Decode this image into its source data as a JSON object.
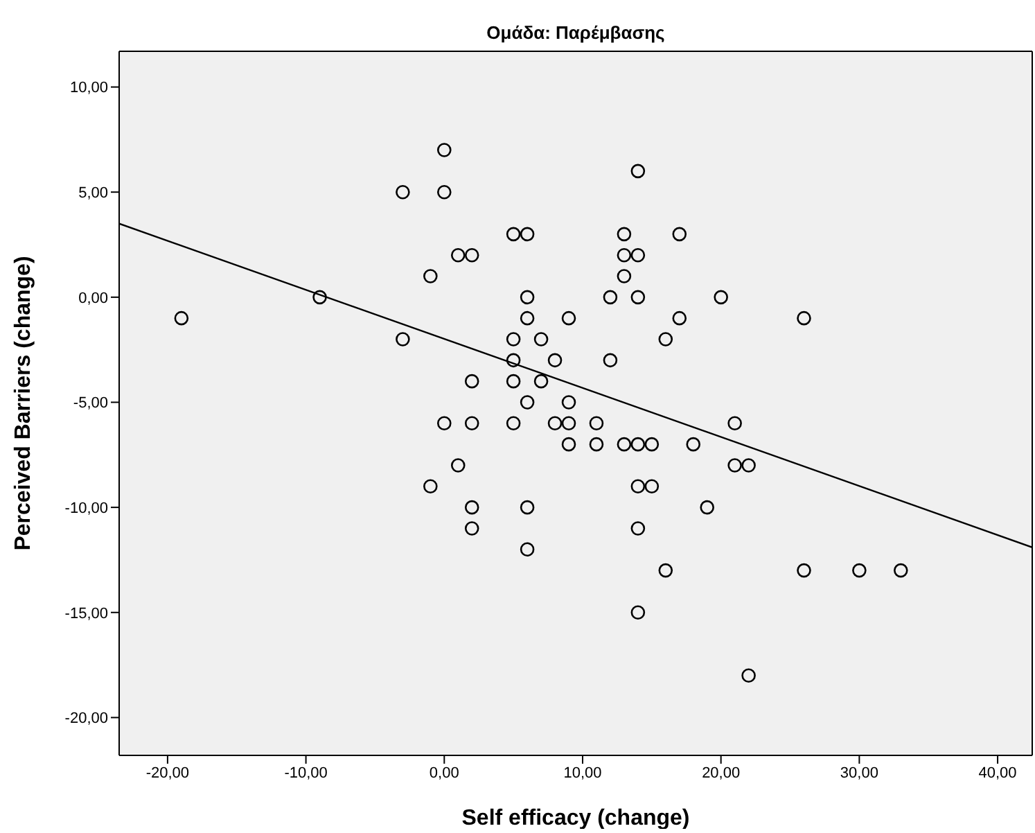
{
  "chart_data": {
    "type": "scatter",
    "title": "Ομάδα: Παρέμβασης",
    "xlabel": "Self efficacy (change)",
    "ylabel": "Perceived Barriers (change)",
    "xlim": [
      -23.5,
      42.5
    ],
    "ylim": [
      -21.8,
      11.7
    ],
    "xticks": [
      {
        "value": -20,
        "label": "-20,00"
      },
      {
        "value": -10,
        "label": "-10,00"
      },
      {
        "value": 0,
        "label": "0,00"
      },
      {
        "value": 10,
        "label": "10,00"
      },
      {
        "value": 20,
        "label": "20,00"
      },
      {
        "value": 30,
        "label": "30,00"
      },
      {
        "value": 40,
        "label": "40,00"
      }
    ],
    "yticks": [
      {
        "value": -20,
        "label": "-20,00"
      },
      {
        "value": -15,
        "label": "-15,00"
      },
      {
        "value": -10,
        "label": "-10,00"
      },
      {
        "value": -5,
        "label": "-5,00"
      },
      {
        "value": 0,
        "label": "0,00"
      },
      {
        "value": 5,
        "label": "5,00"
      },
      {
        "value": 10,
        "label": "10,00"
      }
    ],
    "grid": false,
    "marker": "circle",
    "series": [
      {
        "color": "#000000",
        "x": [
          -19,
          -9,
          -3,
          -3,
          0,
          0,
          -1,
          1,
          2,
          5,
          6,
          6,
          6,
          9,
          5,
          7,
          5,
          8,
          2,
          5,
          7,
          14,
          13,
          17,
          13,
          14,
          13,
          12,
          14,
          20,
          17,
          26,
          16,
          12,
          6,
          9,
          0,
          2,
          5,
          8,
          9,
          9,
          1,
          -1,
          2,
          6,
          2,
          6,
          11,
          11,
          13,
          14,
          15,
          18,
          21,
          21,
          22,
          14,
          15,
          19,
          14,
          16,
          26,
          30,
          33,
          14,
          22
        ],
        "values": [
          -1,
          0,
          5,
          -2,
          7,
          5,
          1,
          2,
          2,
          3,
          3,
          0,
          -1,
          -1,
          -2,
          -2,
          -3,
          -3,
          -4,
          -4,
          -4,
          6,
          3,
          3,
          2,
          2,
          1,
          0,
          0,
          0,
          -1,
          -1,
          -2,
          -3,
          -5,
          -5,
          -6,
          -6,
          -6,
          -6,
          -6,
          -7,
          -8,
          -9,
          -10,
          -10,
          -11,
          -12,
          -6,
          -7,
          -7,
          -7,
          -7,
          -7,
          -6,
          -8,
          -8,
          -9,
          -9,
          -10,
          -11,
          -13,
          -13,
          -13,
          -13,
          -15,
          -18
        ]
      },
      {
        "type": "line",
        "color": "#000000",
        "marker": "none",
        "x": [
          -23.5,
          42.5
        ],
        "values": [
          3.5,
          -11.9
        ]
      }
    ]
  }
}
